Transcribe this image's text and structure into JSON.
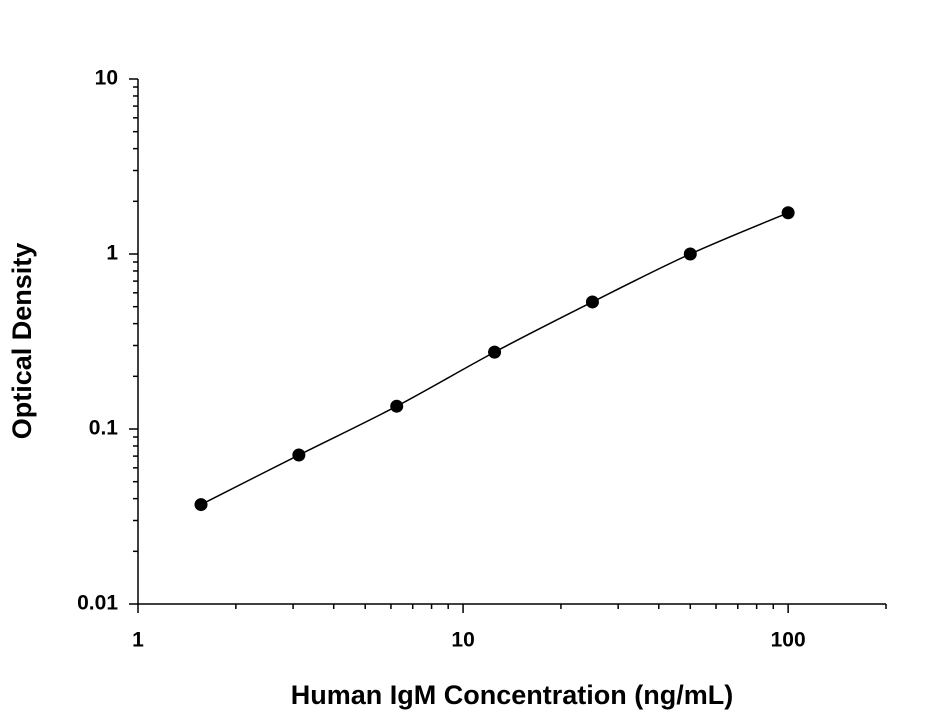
{
  "chart_data": {
    "type": "scatter",
    "x_label": "Human IgM Concentration (ng/mL)",
    "y_label": "Optical Density",
    "x_scale": "log",
    "y_scale": "log",
    "xlim": [
      1,
      200
    ],
    "ylim": [
      0.01,
      10
    ],
    "xticks": [
      1,
      10,
      100
    ],
    "yticks": [
      0.01,
      0.1,
      1,
      10
    ],
    "xminorticks": [
      2,
      3,
      4,
      5,
      6,
      7,
      8,
      9,
      20,
      30,
      40,
      50,
      60,
      70,
      80,
      90,
      200
    ],
    "yminorticks": [
      0.02,
      0.03,
      0.04,
      0.05,
      0.06,
      0.07,
      0.08,
      0.09,
      0.2,
      0.3,
      0.4,
      0.5,
      0.6,
      0.7,
      0.8,
      0.9,
      2,
      3,
      4,
      5,
      6,
      7,
      8,
      9
    ],
    "series": [
      {
        "color": "#000000",
        "fit_line": true,
        "x": [
          1.5625,
          3.125,
          6.25,
          12.5,
          25,
          50,
          100
        ],
        "values": [
          0.037,
          0.071,
          0.135,
          0.275,
          0.532,
          1.0,
          1.72
        ]
      }
    ]
  }
}
